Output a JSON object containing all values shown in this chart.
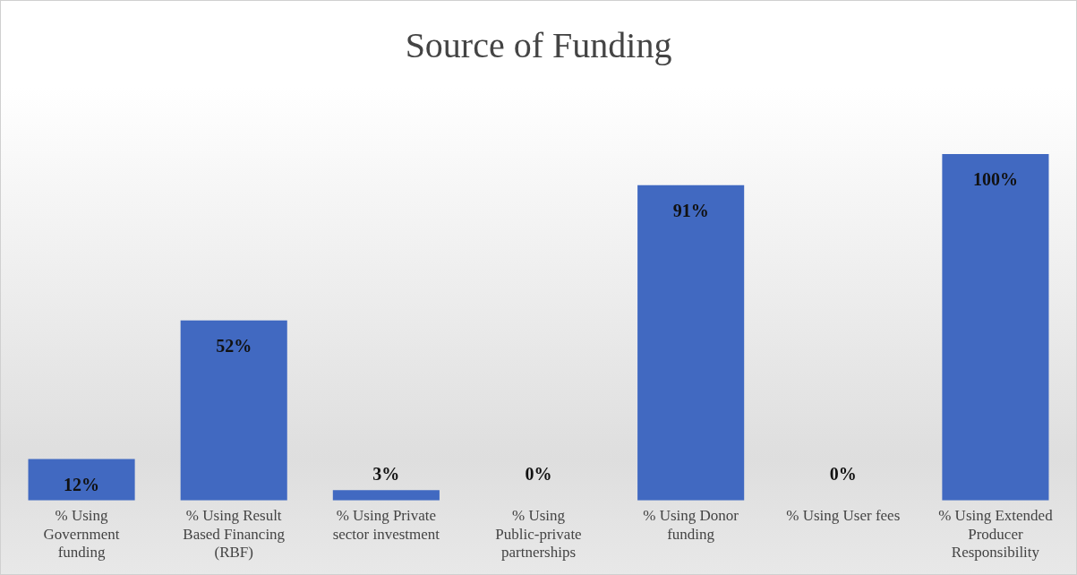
{
  "chart_data": {
    "type": "bar",
    "title": "Source of Funding",
    "categories": [
      "% Using Government funding",
      "% Using Result Based Financing (RBF)",
      "% Using Private sector investment",
      "% Using Public-private partnerships",
      "% Using Donor funding",
      "% Using User fees",
      "% Using Extended Producer Responsibility"
    ],
    "values": [
      12,
      52,
      3,
      0,
      91,
      0,
      100
    ],
    "color": "#4169c1",
    "value_labels": [
      "12%",
      "52%",
      "3%",
      "0%",
      "91%",
      "0%",
      "100%"
    ],
    "ylim": [
      0,
      100
    ],
    "grid": false,
    "legend": false,
    "tick_labels": "x"
  }
}
